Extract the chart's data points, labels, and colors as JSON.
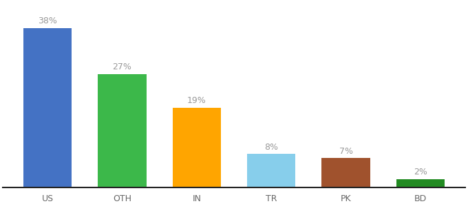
{
  "categories": [
    "US",
    "OTH",
    "IN",
    "TR",
    "PK",
    "BD"
  ],
  "values": [
    38,
    27,
    19,
    8,
    7,
    2
  ],
  "bar_colors": [
    "#4472C4",
    "#3CB84A",
    "#FFA500",
    "#87CEEB",
    "#A0522D",
    "#228B22"
  ],
  "labels": [
    "38%",
    "27%",
    "19%",
    "8%",
    "7%",
    "2%"
  ],
  "label_fontsize": 9,
  "tick_fontsize": 9,
  "ylim": [
    0,
    44
  ],
  "bar_width": 0.65,
  "background_color": "#ffffff",
  "label_color": "#999999",
  "tick_color": "#666666"
}
